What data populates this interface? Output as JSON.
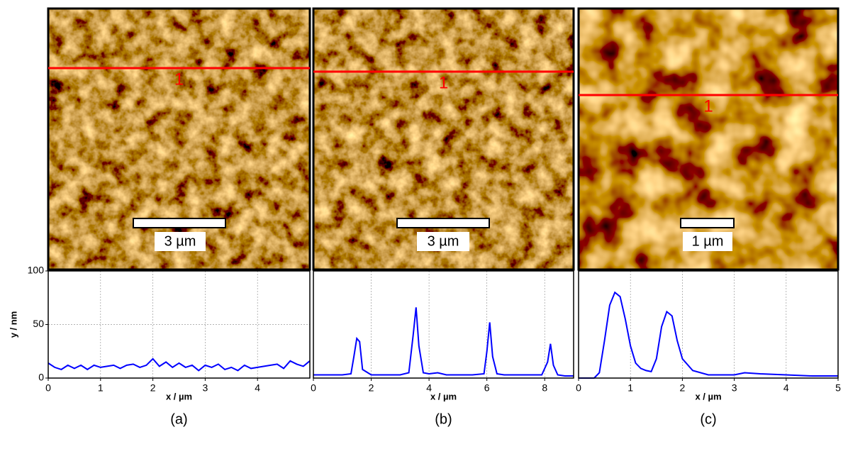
{
  "chart_data": [
    {
      "type": "line",
      "panel_label": "(a)",
      "scale_bar": "3 µm",
      "profile_label": "1",
      "x_label": "x / µm",
      "y_label": "y / nm",
      "xlim": [
        0,
        5
      ],
      "xticks": [
        0,
        1,
        2,
        3,
        4
      ],
      "ylim": [
        0,
        100
      ],
      "yticks": [
        0,
        50,
        100
      ],
      "grid": true,
      "color": "#0000ff",
      "x": [
        0,
        0.125,
        0.25,
        0.375,
        0.5,
        0.625,
        0.75,
        0.875,
        1,
        1.125,
        1.25,
        1.375,
        1.5,
        1.625,
        1.75,
        1.875,
        2,
        2.125,
        2.25,
        2.375,
        2.5,
        2.625,
        2.75,
        2.875,
        3,
        3.125,
        3.25,
        3.375,
        3.5,
        3.625,
        3.75,
        3.875,
        4,
        4.125,
        4.25,
        4.375,
        4.5,
        4.625,
        4.75,
        4.875,
        5
      ],
      "values": [
        14,
        10,
        8,
        12,
        9,
        12,
        8,
        12,
        10,
        11,
        12,
        9,
        12,
        13,
        10,
        12,
        18,
        11,
        15,
        10,
        14,
        10,
        12,
        7,
        12,
        10,
        13,
        8,
        10,
        7,
        12,
        9,
        10,
        11,
        12,
        13,
        9,
        16,
        13,
        11,
        16
      ]
    },
    {
      "type": "line",
      "panel_label": "(b)",
      "scale_bar": "3 µm",
      "profile_label": "1",
      "x_label": "x / µm",
      "xlim": [
        0,
        9
      ],
      "xticks": [
        0,
        2,
        4,
        6,
        8
      ],
      "ylim": [
        0,
        100
      ],
      "grid": true,
      "color": "#0000ff",
      "x": [
        0,
        0.5,
        1,
        1.3,
        1.4,
        1.5,
        1.6,
        1.7,
        2,
        2.5,
        3,
        3.3,
        3.45,
        3.55,
        3.65,
        3.8,
        4,
        4.3,
        4.6,
        5,
        5.5,
        5.9,
        6.0,
        6.1,
        6.2,
        6.35,
        6.6,
        7,
        7.5,
        7.9,
        8.1,
        8.2,
        8.3,
        8.45,
        8.7,
        9
      ],
      "values": [
        3,
        3,
        3,
        4,
        20,
        37,
        34,
        8,
        3,
        3,
        3,
        5,
        40,
        66,
        30,
        5,
        4,
        5,
        3,
        3,
        3,
        4,
        25,
        52,
        20,
        4,
        3,
        3,
        3,
        3,
        15,
        32,
        12,
        3,
        2,
        2
      ]
    },
    {
      "type": "line",
      "panel_label": "(c)",
      "scale_bar": "1 µm",
      "profile_label": "1",
      "x_label": "x / µm",
      "xlim": [
        0,
        5
      ],
      "xticks": [
        0,
        1,
        2,
        3,
        4,
        5
      ],
      "ylim": [
        0,
        100
      ],
      "grid": true,
      "color": "#0000ff",
      "x": [
        0,
        0.3,
        0.4,
        0.5,
        0.6,
        0.7,
        0.8,
        0.9,
        1.0,
        1.1,
        1.2,
        1.3,
        1.4,
        1.5,
        1.6,
        1.7,
        1.8,
        1.9,
        2.0,
        2.2,
        2.5,
        3,
        3.2,
        3.5,
        4,
        4.5,
        5
      ],
      "values": [
        0,
        0,
        5,
        35,
        68,
        80,
        76,
        55,
        30,
        14,
        9,
        7,
        6,
        18,
        48,
        62,
        58,
        35,
        18,
        7,
        3,
        3,
        5,
        4,
        3,
        2,
        2
      ]
    }
  ]
}
